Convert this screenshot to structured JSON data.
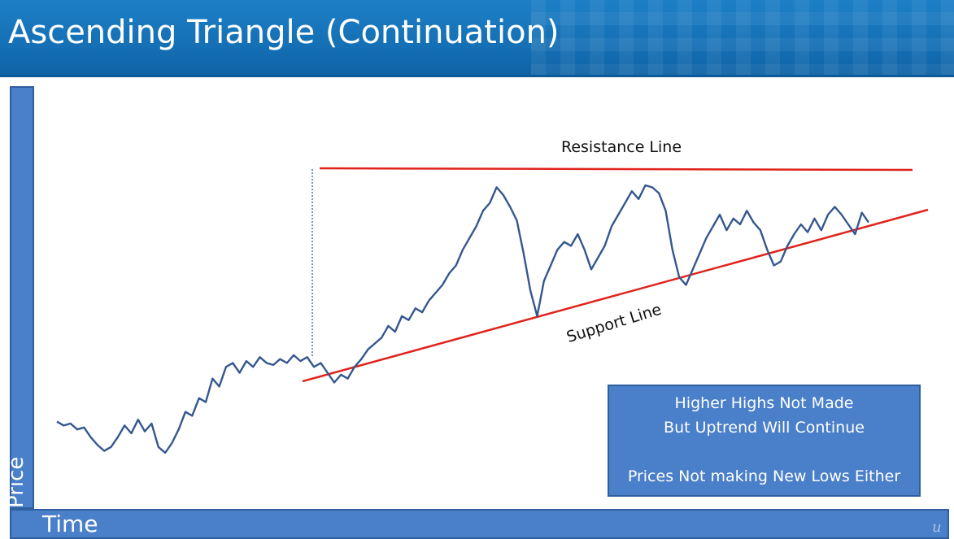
{
  "slide": {
    "title": "Ascending Triangle (Continuation)"
  },
  "axes": {
    "y_label": "Price",
    "x_label": "Time"
  },
  "annotations": {
    "resistance_label": "Resistance Line",
    "support_label": "Support Line",
    "note_line1": "Higher Highs Not Made",
    "note_line2": "But Uptrend Will Continue",
    "note_line3": "Prices Not making New Lows Either"
  },
  "colors": {
    "title_bar": "#1570b5",
    "axis_bar": "#4a7fc9",
    "price_line": "#34578f",
    "trend_lines": "#e0231c"
  },
  "chart_data": {
    "type": "line",
    "series": [
      {
        "values": [
          30,
          28,
          29,
          26,
          27,
          22,
          18,
          15,
          17,
          22,
          28,
          24,
          31,
          25,
          29,
          17,
          14,
          19,
          26,
          35,
          33,
          42,
          40,
          52,
          48,
          58,
          60,
          55,
          61,
          58,
          63,
          60,
          59,
          62,
          60,
          64,
          61,
          63,
          58,
          60,
          55,
          50,
          54,
          52,
          58,
          62,
          67,
          70,
          73,
          79,
          76,
          84,
          82,
          88,
          86,
          92,
          96,
          100,
          106,
          110,
          118,
          124,
          130,
          138,
          142,
          150,
          146,
          140,
          133,
          116,
          97,
          84,
          102,
          110,
          118,
          122,
          120,
          126,
          118,
          108,
          114,
          120,
          130,
          136,
          142,
          148,
          144,
          151,
          150,
          147,
          138,
          118,
          104,
          100,
          108,
          116,
          124,
          130,
          136,
          128,
          134,
          131,
          138,
          132,
          128,
          118,
          110,
          112,
          120,
          126,
          131,
          127,
          134,
          128,
          136,
          140,
          136,
          131,
          126,
          137,
          132
        ]
      }
    ],
    "trend_lines": [
      "Resistance Line",
      "Support Line"
    ]
  }
}
